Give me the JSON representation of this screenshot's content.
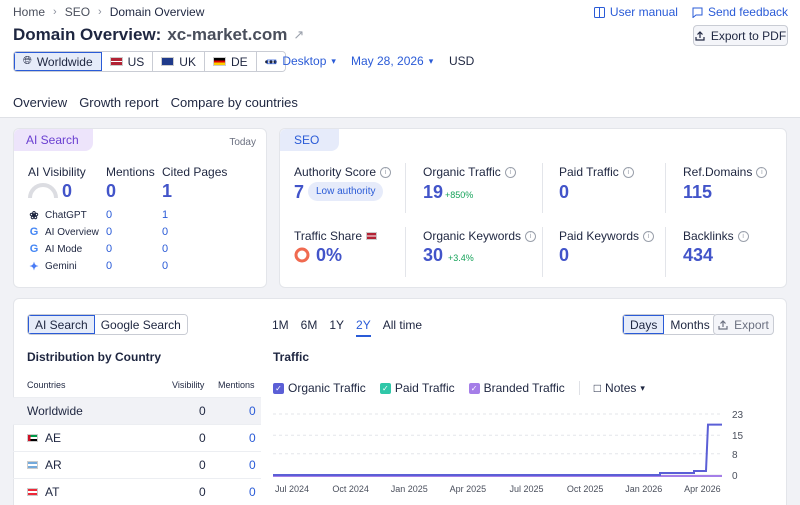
{
  "breadcrumb": [
    "Home",
    "SEO",
    "Domain Overview"
  ],
  "toplinks": {
    "manual": "User manual",
    "feedback": "Send feedback"
  },
  "title": {
    "label": "Domain Overview:",
    "domain": "xc-market.com"
  },
  "export_pdf": "Export to PDF",
  "db_tabs": [
    "Worldwide",
    "US",
    "UK",
    "DE",
    "•••"
  ],
  "device": "Desktop",
  "date": "May 28, 2026",
  "currency": "USD",
  "main_tabs": [
    "Overview",
    "Growth report",
    "Compare by countries"
  ],
  "ai_card": {
    "tag": "AI Search",
    "today": "Today",
    "headers": {
      "visibility": "AI Visibility",
      "mentions": "Mentions",
      "cited": "Cited Pages"
    },
    "totals": {
      "visibility": "0",
      "mentions": "0",
      "cited": "1"
    },
    "sources": [
      {
        "name": "ChatGPT",
        "mentions": "0",
        "cited": "1"
      },
      {
        "name": "AI Overview",
        "mentions": "0",
        "cited": "0"
      },
      {
        "name": "AI Mode",
        "mentions": "0",
        "cited": "0"
      },
      {
        "name": "Gemini",
        "mentions": "0",
        "cited": "0"
      }
    ]
  },
  "seo_card": {
    "tag": "SEO",
    "authority": {
      "label": "Authority Score",
      "value": "7",
      "badge": "Low authority"
    },
    "organic_traffic": {
      "label": "Organic Traffic",
      "value": "19",
      "delta": "+850%"
    },
    "paid_traffic": {
      "label": "Paid Traffic",
      "value": "0"
    },
    "ref_domains": {
      "label": "Ref.Domains",
      "value": "115"
    },
    "traffic_share": {
      "label": "Traffic Share",
      "value": "0%"
    },
    "organic_keywords": {
      "label": "Organic Keywords",
      "value": "30",
      "delta": "+3.4%"
    },
    "paid_keywords": {
      "label": "Paid Keywords",
      "value": "0"
    },
    "backlinks": {
      "label": "Backlinks",
      "value": "434"
    }
  },
  "bottom": {
    "search_toggle": [
      "AI Search",
      "Google Search"
    ],
    "ranges": [
      "1M",
      "6M",
      "1Y",
      "2Y",
      "All time"
    ],
    "granularity": [
      "Days",
      "Months"
    ],
    "export": "Export",
    "dist_title": "Distribution by Country",
    "table_headers": {
      "country": "Countries",
      "visibility": "Visibility",
      "mentions": "Mentions"
    },
    "rows": [
      {
        "country": "Worldwide",
        "visibility": "0",
        "mentions": "0"
      },
      {
        "country": "AE",
        "visibility": "0",
        "mentions": "0"
      },
      {
        "country": "AR",
        "visibility": "0",
        "mentions": "0"
      },
      {
        "country": "AT",
        "visibility": "0",
        "mentions": "0"
      }
    ],
    "traffic_title": "Traffic",
    "legend": [
      "Organic Traffic",
      "Paid Traffic",
      "Branded Traffic"
    ],
    "notes": "Notes"
  },
  "colors": {
    "accent": "#2a5bd7",
    "value": "#4254c9",
    "organic": "#5b5fd6",
    "paid": "#2fc7a8",
    "branded": "#a57ee8"
  },
  "chart_data": {
    "type": "line",
    "x_ticks": [
      "Jul 2024",
      "Oct 2024",
      "Jan 2025",
      "Apr 2025",
      "Jul 2025",
      "Oct 2025",
      "Jan 2026",
      "Apr 2026"
    ],
    "y_ticks": [
      23,
      15,
      8,
      0
    ],
    "ylim": [
      0,
      23
    ],
    "series": [
      {
        "name": "Organic Traffic",
        "points": [
          [
            "2024-05",
            0
          ],
          [
            "2026-03",
            0
          ],
          [
            "2026-03",
            1
          ],
          [
            "2026-04",
            1
          ],
          [
            "2026-04",
            2
          ],
          [
            "2026-05",
            2
          ],
          [
            "2026-05",
            19
          ],
          [
            "2026-05",
            19
          ]
        ]
      },
      {
        "name": "Branded Traffic",
        "points": [
          [
            "2024-05",
            0
          ],
          [
            "2026-05",
            0
          ]
        ]
      }
    ]
  }
}
